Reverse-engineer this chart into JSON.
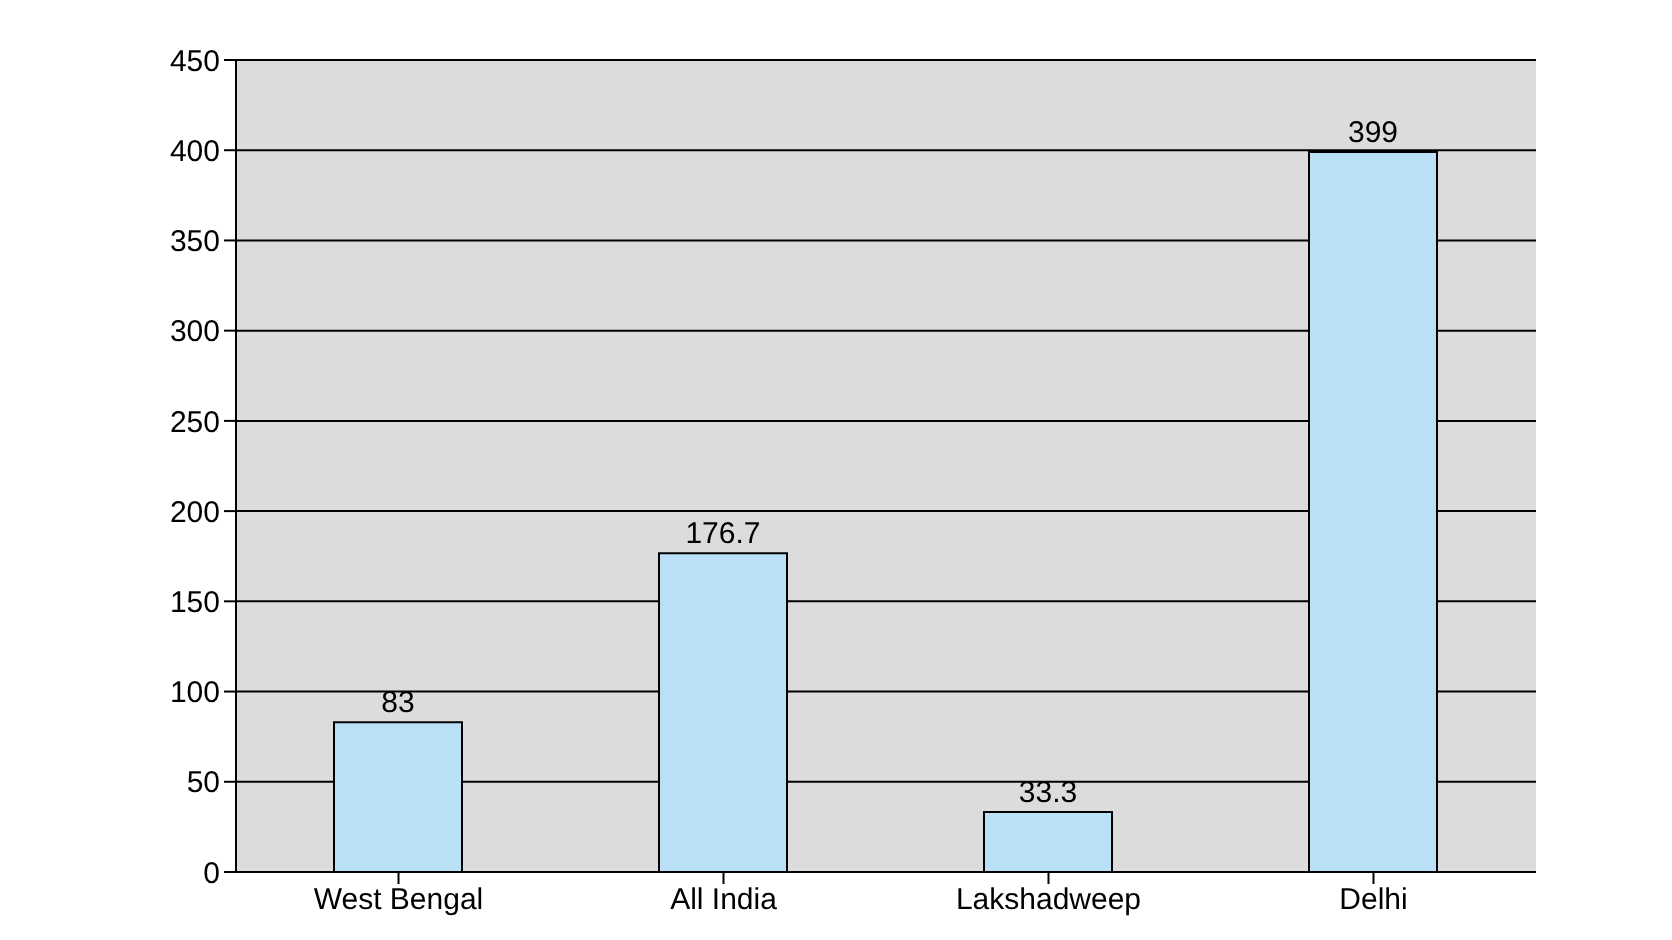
{
  "chart_data": {
    "type": "bar",
    "categories": [
      "West Bengal",
      "All India",
      "Lakshadweep",
      "Delhi"
    ],
    "values": [
      83,
      176.7,
      33.3,
      399
    ],
    "color": "#b9e0f7",
    "ylim": [
      0,
      450
    ],
    "yticks": [
      0,
      50,
      100,
      150,
      200,
      250,
      300,
      350,
      400,
      450
    ],
    "grid": "y",
    "data_labels": true
  }
}
